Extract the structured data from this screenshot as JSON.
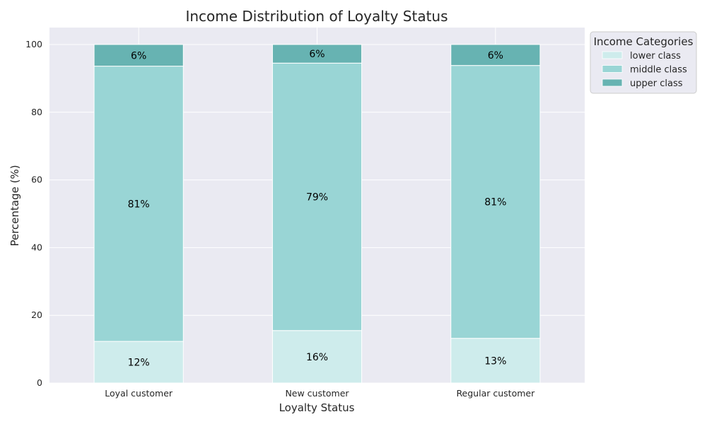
{
  "chart_data": {
    "type": "bar",
    "stacked": true,
    "title": "Income Distribution of Loyalty Status",
    "xlabel": "Loyalty Status",
    "ylabel": "Percentage (%)",
    "categories": [
      "Loyal customer",
      "New customer",
      "Regular customer"
    ],
    "ylim": [
      0,
      105
    ],
    "yticks": [
      0,
      20,
      40,
      60,
      80,
      100
    ],
    "grid": true,
    "legend": {
      "title": "Income Categories",
      "placement": "outside-top-right"
    },
    "series": [
      {
        "name": "lower class",
        "values": [
          12.3,
          15.5,
          13.2
        ],
        "labels": [
          "12%",
          "16%",
          "13%"
        ],
        "color": "#ceecec"
      },
      {
        "name": "middle class",
        "values": [
          81.3,
          79.0,
          80.6
        ],
        "labels": [
          "81%",
          "79%",
          "81%"
        ],
        "color": "#99d5d5"
      },
      {
        "name": "upper class",
        "values": [
          6.4,
          5.5,
          6.2
        ],
        "labels": [
          "6%",
          "6%",
          "6%"
        ],
        "color": "#67b3b2"
      }
    ],
    "plot_background": "#eaeaf2"
  }
}
